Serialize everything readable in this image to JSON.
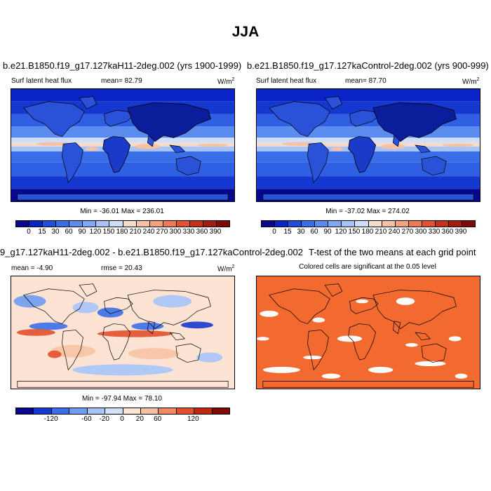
{
  "page_title": "JJA",
  "panels": [
    {
      "title": "b.e21.B1850.f19_g17.127kaH11-2deg.002 (yrs 1900-1999)",
      "variable": "Surf latent heat flux",
      "mean_label": "mean=  82.79",
      "units": "W/m",
      "units_sup": "2",
      "minmax": "Min = -36.01 Max = 236.01",
      "colorbar_ticks": [
        "0",
        "15",
        "30",
        "60",
        "90",
        "120",
        "150",
        "180",
        "210",
        "240",
        "270",
        "300",
        "330",
        "360",
        "390"
      ]
    },
    {
      "title": "b.e21.B1850.f19_g17.127kaControl-2deg.002 (yrs 900-999)",
      "variable": "Surf latent heat flux",
      "mean_label": "mean=  87.70",
      "units": "W/m",
      "units_sup": "2",
      "minmax": "Min = -37.02 Max = 274.02",
      "colorbar_ticks": [
        "0",
        "15",
        "30",
        "60",
        "90",
        "120",
        "150",
        "180",
        "210",
        "240",
        "270",
        "300",
        "330",
        "360",
        "390"
      ]
    },
    {
      "title": "9_g17.127kaH11-2deg.002 - b.e21.B1850.f19_g17.127kaControl-2deg.002",
      "mean_label": "mean = -4.90",
      "rmse_label": "rmse =  20.43",
      "units": "W/m",
      "units_sup": "2",
      "minmax": "Min = -97.94 Max = 78.10",
      "colorbar_ticks": [
        "-120",
        "-60",
        "-20",
        "0",
        "20",
        "60",
        "120"
      ]
    },
    {
      "title": "T-test of the two means at each grid point",
      "subtitle": "Colored cells are significant at the 0.05 level"
    }
  ],
  "colors": {
    "abs_scale": [
      "#08088e",
      "#0a24c8",
      "#1f4fe0",
      "#3a6ee8",
      "#5a8cf0",
      "#7ea8f4",
      "#a6c4f8",
      "#cfdefa",
      "#f5dccb",
      "#f7c2a4",
      "#f5a17e",
      "#ef7a52",
      "#e2502e",
      "#c73018",
      "#a51a0c",
      "#7e0a04"
    ],
    "diff_scale": [
      "#08088e",
      "#1538d0",
      "#3a6ee8",
      "#6e9cf0",
      "#a6c4f8",
      "#d4e2f8",
      "#fce3d4",
      "#f7c2a4",
      "#f08a60",
      "#e2502e",
      "#c22810",
      "#7e0a04"
    ],
    "ttest_fill": "#f26a30",
    "ocean_dark": "#1b3fcf"
  }
}
